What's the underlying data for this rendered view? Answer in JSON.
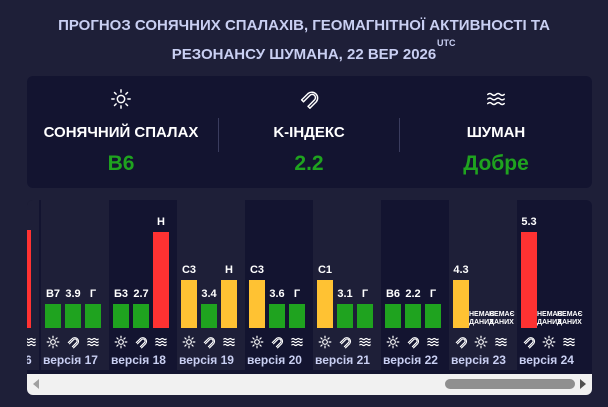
{
  "header": {
    "title_line1": "ПРОГНОЗ СОНЯЧНИХ СПАЛАХІВ, ГЕОМАГНІТНОЇ АКТИВНОСТІ ТА",
    "title_line2": "РЕЗОНАНСУ ШУМАНА, 22 ВЕР 2026",
    "utc": "UTC"
  },
  "summary": {
    "solar": {
      "icon": "sun-icon",
      "label": "СОНЯЧНИЙ СПАЛАХ",
      "value": "B6"
    },
    "kindex": {
      "icon": "magnet-icon",
      "label": "K-ІНДЕКС",
      "value": "2.2"
    },
    "schumann": {
      "icon": "waves-icon",
      "label": "ШУМАН",
      "value": "Добре"
    }
  },
  "colors": {
    "green": "#1fa31f",
    "yellow": "#ffc233",
    "red": "#ff3232",
    "value_green": "#1fa31f"
  },
  "timeline": {
    "versions": [
      {
        "label": "версія 17",
        "solar": {
          "text": "B7",
          "level": 1,
          "color": "green"
        },
        "kindex": {
          "text": "3.9",
          "level": 1,
          "color": "green"
        },
        "schumann": {
          "text": "Г",
          "level": 1,
          "color": "green"
        }
      },
      {
        "label": "версія 18",
        "solar": {
          "text": "Б3",
          "level": 1,
          "color": "green"
        },
        "kindex": {
          "text": "2.7",
          "level": 1,
          "color": "green"
        },
        "schumann": {
          "text": "Н",
          "level": 4,
          "color": "red"
        }
      },
      {
        "label": "версія 19",
        "solar": {
          "text": "C3",
          "level": 2,
          "color": "yellow"
        },
        "kindex": {
          "text": "3.4",
          "level": 1,
          "color": "green"
        },
        "schumann": {
          "text": "Н",
          "level": 2,
          "color": "yellow"
        }
      },
      {
        "label": "версія 20",
        "solar": {
          "text": "C3",
          "level": 2,
          "color": "yellow"
        },
        "kindex": {
          "text": "3.6",
          "level": 1,
          "color": "green"
        },
        "schumann": {
          "text": "Г",
          "level": 1,
          "color": "green"
        }
      },
      {
        "label": "версія 21",
        "solar": {
          "text": "C1",
          "level": 2,
          "color": "yellow"
        },
        "kindex": {
          "text": "3.1",
          "level": 1,
          "color": "green"
        },
        "schumann": {
          "text": "Г",
          "level": 1,
          "color": "green"
        }
      },
      {
        "label": "версія 22",
        "solar": {
          "text": "B6",
          "level": 1,
          "color": "green"
        },
        "kindex": {
          "text": "2.2",
          "level": 1,
          "color": "green"
        },
        "schumann": {
          "text": "Г",
          "level": 1,
          "color": "green"
        }
      },
      {
        "label": "версія 23",
        "kindex": {
          "text": "4.3",
          "level": 2,
          "color": "yellow"
        },
        "solar": {
          "text": "НЕМАЄ ДАНИХ"
        },
        "schumann": {
          "text": "НЕМАЄ ДАНИХ"
        }
      },
      {
        "label": "версія 24",
        "kindex": {
          "text": "5.3",
          "level": 4,
          "color": "red"
        },
        "solar": {
          "text": "НЕМАЄ ДАНИХ"
        },
        "schumann": {
          "text": "НЕМАЄ ДАНИХ"
        }
      }
    ],
    "partial_left_label": "6"
  }
}
